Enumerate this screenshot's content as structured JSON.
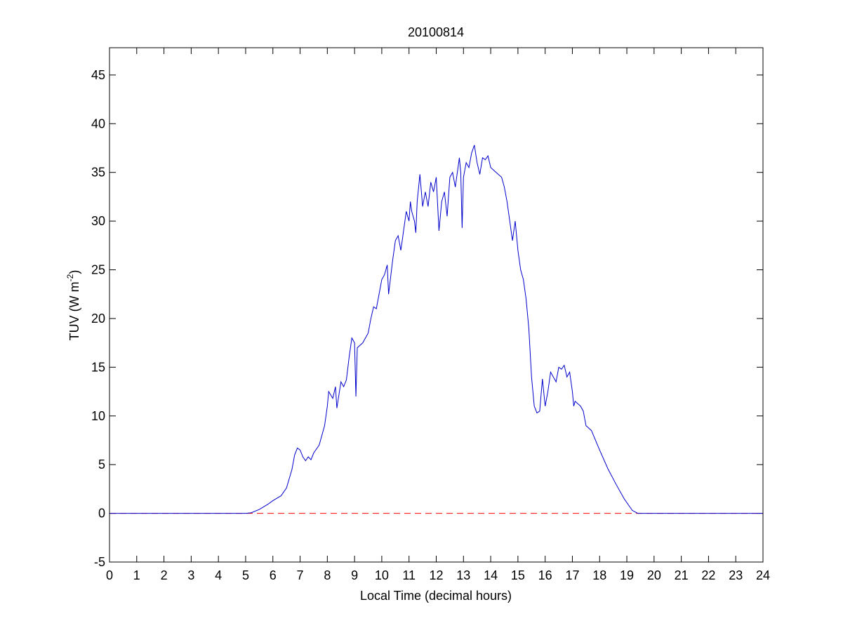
{
  "chart_data": {
    "type": "line",
    "title": "20100814",
    "xlabel": "Local Time (decimal hours)",
    "ylabel": {
      "text": "TUV (W m",
      "superscript": "-2",
      "suffix": ")"
    },
    "xlim": [
      0,
      24
    ],
    "ylim": [
      -5,
      47.8
    ],
    "xticks": [
      0,
      1,
      2,
      3,
      4,
      5,
      6,
      7,
      8,
      9,
      10,
      11,
      12,
      13,
      14,
      15,
      16,
      17,
      18,
      19,
      20,
      21,
      22,
      23,
      24
    ],
    "yticks": [
      -5,
      0,
      5,
      10,
      15,
      20,
      25,
      30,
      35,
      40,
      45
    ],
    "reference_line": {
      "value": 0,
      "color": "#ff0000",
      "style": "dashed"
    },
    "series": [
      {
        "name": "TUV",
        "color": "#0000cc",
        "x": [
          0,
          5,
          5.2,
          5.5,
          5.8,
          6.0,
          6.3,
          6.5,
          6.7,
          6.8,
          6.9,
          7.0,
          7.1,
          7.2,
          7.3,
          7.4,
          7.5,
          7.7,
          7.9,
          8.0,
          8.05,
          8.2,
          8.3,
          8.35,
          8.5,
          8.6,
          8.7,
          8.8,
          8.9,
          9.0,
          9.05,
          9.1,
          9.3,
          9.5,
          9.6,
          9.7,
          9.8,
          9.9,
          10.0,
          10.1,
          10.2,
          10.25,
          10.4,
          10.5,
          10.6,
          10.7,
          10.8,
          10.9,
          11.0,
          11.05,
          11.1,
          11.2,
          11.25,
          11.3,
          11.4,
          11.5,
          11.6,
          11.7,
          11.8,
          11.9,
          12.0,
          12.1,
          12.2,
          12.3,
          12.4,
          12.5,
          12.6,
          12.7,
          12.8,
          12.85,
          12.9,
          12.95,
          13.0,
          13.1,
          13.2,
          13.3,
          13.4,
          13.5,
          13.6,
          13.7,
          13.8,
          13.9,
          14.0,
          14.2,
          14.4,
          14.5,
          14.6,
          14.7,
          14.8,
          14.9,
          15.0,
          15.1,
          15.2,
          15.3,
          15.4,
          15.5,
          15.6,
          15.7,
          15.8,
          15.9,
          16.0,
          16.1,
          16.2,
          16.3,
          16.4,
          16.5,
          16.6,
          16.7,
          16.8,
          16.9,
          17.0,
          17.05,
          17.1,
          17.3,
          17.4,
          17.5,
          17.7,
          18.0,
          18.3,
          18.6,
          18.9,
          19.2,
          19.4,
          24
        ],
        "values": [
          0,
          0,
          0.05,
          0.4,
          0.9,
          1.3,
          1.8,
          2.6,
          4.5,
          6.0,
          6.7,
          6.5,
          5.8,
          5.4,
          5.8,
          5.5,
          6.2,
          7.0,
          9,
          11,
          12.5,
          11.8,
          13,
          10.8,
          13.5,
          13,
          13.7,
          16,
          18,
          17.5,
          12,
          17,
          17.5,
          18.5,
          20,
          21.2,
          21,
          22.5,
          24,
          24.5,
          25.5,
          22.5,
          26,
          28,
          28.5,
          27,
          29,
          31,
          30,
          32,
          31,
          30,
          28.8,
          32,
          34.8,
          31.5,
          33,
          31.5,
          34,
          33,
          34.5,
          29,
          32,
          33,
          30.5,
          34.5,
          35,
          33.5,
          35.5,
          36.5,
          35,
          29.3,
          34.5,
          36,
          35.5,
          37,
          37.8,
          36,
          34.8,
          36.5,
          36.3,
          36.7,
          35.5,
          35,
          34.5,
          33.5,
          32,
          30,
          28,
          30,
          27,
          25,
          24,
          22,
          19,
          14,
          11,
          10.3,
          10.5,
          13.8,
          11,
          12.5,
          14.5,
          14,
          13.5,
          15,
          14.8,
          15.2,
          14,
          14.5,
          12.5,
          11,
          11.5,
          11,
          10.5,
          9,
          8.5,
          6.5,
          4.6,
          3,
          1.5,
          0.3,
          0,
          0
        ]
      }
    ]
  }
}
